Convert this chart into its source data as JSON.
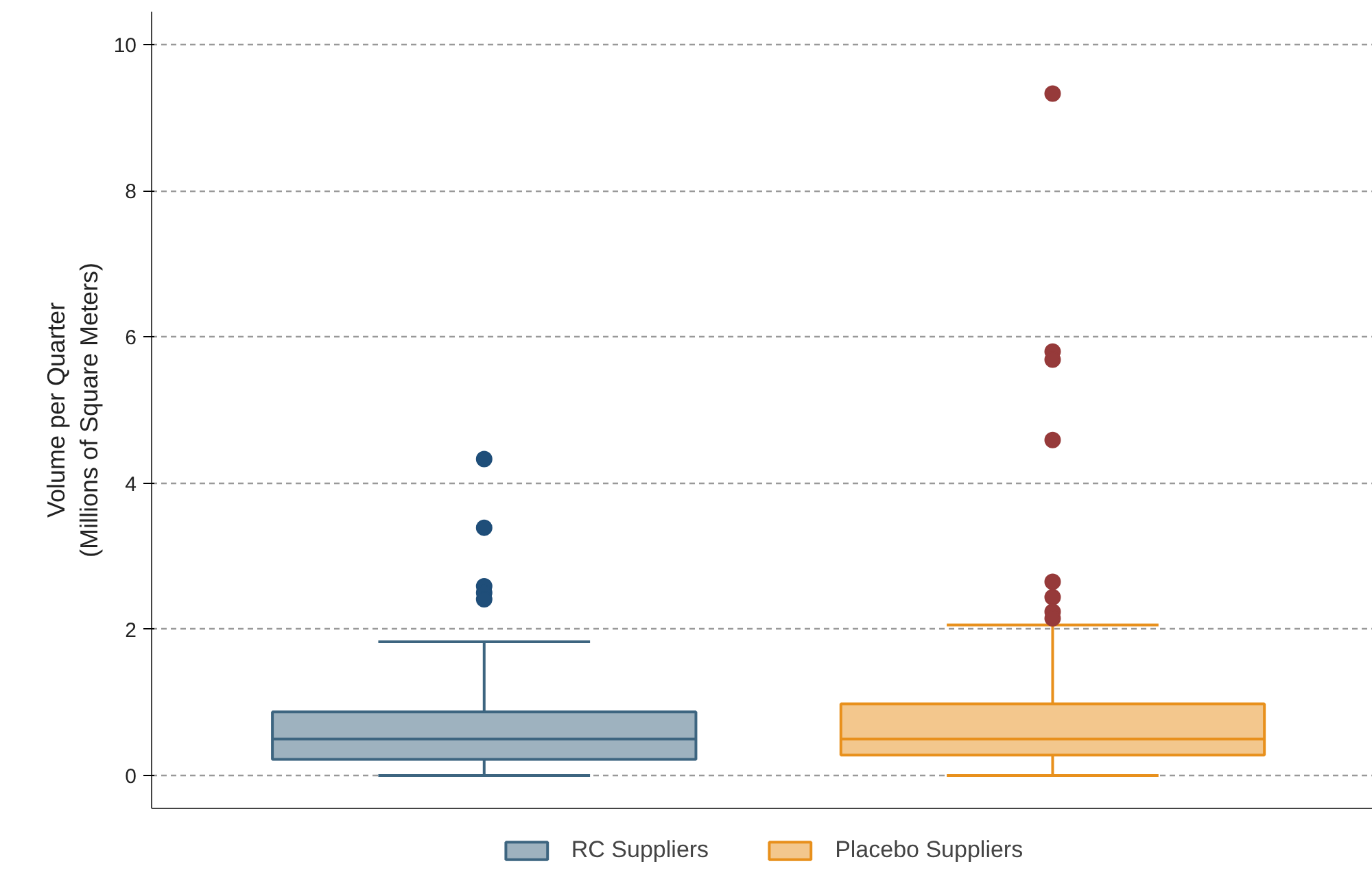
{
  "chart_data": {
    "type": "box",
    "ylabel": "Volume per Quarter\n(Millions of Square Meters)",
    "categories": [
      null,
      null
    ],
    "ylim": [
      -0.45,
      10.45
    ],
    "yticks": [
      0,
      2,
      4,
      6,
      8,
      10
    ],
    "grid": "y",
    "legend": "bottom",
    "tick_labels": "y",
    "series": [
      {
        "name": "RC Suppliers",
        "color": "#1f4e79",
        "colors": [
          "#3d6580",
          null
        ],
        "boxes": [
          {
            "low": 0,
            "q1": 0.22,
            "median": 0.5,
            "q3": 0.87,
            "high": 1.83,
            "outliers": [
              4.33,
              3.39,
              2.59,
              2.5,
              2.41
            ]
          },
          null
        ]
      },
      {
        "name": "Placebo Suppliers",
        "color": "#963a3a",
        "colors": [
          null,
          "#e8901c"
        ],
        "boxes": [
          null,
          {
            "low": 0,
            "q1": 0.28,
            "median": 0.5,
            "q3": 0.98,
            "high": 2.06,
            "outliers": [
              9.33,
              5.8,
              5.69,
              4.59,
              2.65,
              2.44,
              2.24,
              2.15
            ]
          }
        ]
      }
    ]
  }
}
